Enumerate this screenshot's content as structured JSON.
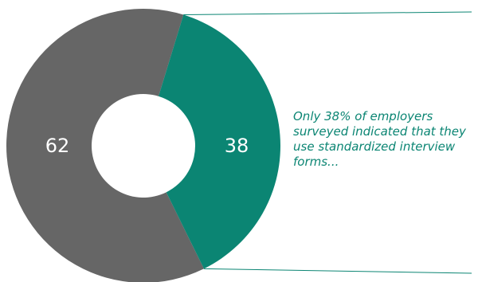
{
  "chart_data": {
    "type": "pie",
    "donut": true,
    "slices": [
      {
        "label": "62",
        "value": 62,
        "color": "#666666"
      },
      {
        "label": "38",
        "value": 38,
        "color": "#0b8573"
      }
    ],
    "title": "",
    "annotation": "Only 38% of employers surveyed indicated that they use standardized interview forms..."
  },
  "colors": {
    "callout_line": "#0b8573",
    "callout_text": "#0b8573"
  }
}
